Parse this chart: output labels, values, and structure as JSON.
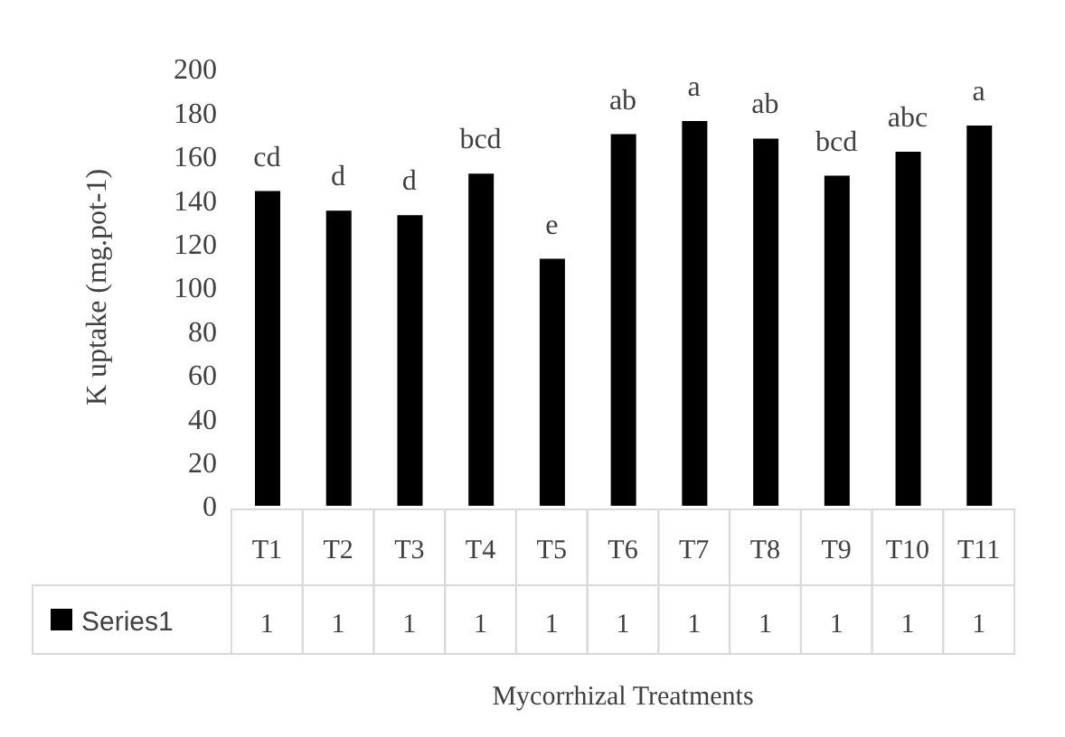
{
  "chart_data": {
    "type": "bar",
    "xlabel": "Mycorrhizal Treatments",
    "ylabel": "K uptake (mg.pot-1)",
    "categories": [
      "T1",
      "T2",
      "T3",
      "T4",
      "T5",
      "T6",
      "T7",
      "T8",
      "T9",
      "T10",
      "T11"
    ],
    "series": [
      {
        "name": "Series1",
        "color": "#000000",
        "values": [
          144,
          135,
          133,
          152,
          113,
          170,
          176,
          168,
          151,
          162,
          174
        ]
      }
    ],
    "ylim": [
      0,
      200
    ],
    "yticks": [
      0,
      20,
      40,
      60,
      80,
      100,
      120,
      140,
      160,
      180,
      200
    ],
    "grid": false,
    "legend": "bottom",
    "annotations": [
      {
        "text": "cd",
        "x": "T1",
        "y": 144
      },
      {
        "text": "d",
        "x": "T2",
        "y": 135
      },
      {
        "text": "d",
        "x": "T3",
        "y": 133
      },
      {
        "text": "bcd",
        "x": "T4",
        "y": 152
      },
      {
        "text": "e",
        "x": "T5",
        "y": 113
      },
      {
        "text": "ab",
        "x": "T6",
        "y": 170
      },
      {
        "text": "a",
        "x": "T7",
        "y": 176
      },
      {
        "text": "ab",
        "x": "T8",
        "y": 168
      },
      {
        "text": "bcd",
        "x": "T9",
        "y": 151
      },
      {
        "text": "abc",
        "x": "T10",
        "y": 162
      },
      {
        "text": "a",
        "x": "T11",
        "y": 174
      },
      "1",
      "1",
      "1",
      "1",
      "1",
      "1",
      "1",
      "1",
      "1",
      "1",
      "1"
    ]
  }
}
